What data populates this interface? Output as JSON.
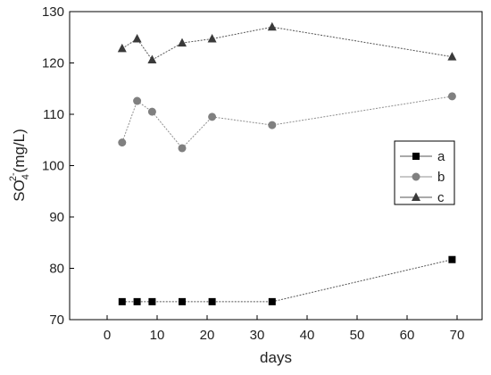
{
  "chart_data": {
    "type": "line",
    "xlabel": "days",
    "ylabel_main": "SO",
    "ylabel_sub": "4",
    "ylabel_sup": "2-",
    "ylabel_unit": "(mg/L)",
    "xlim": [
      -7.5,
      75
    ],
    "ylim": [
      70,
      130
    ],
    "xticks": [
      0,
      10,
      20,
      30,
      40,
      50,
      60,
      70
    ],
    "yticks": [
      70,
      80,
      90,
      100,
      110,
      120,
      130
    ],
    "grid": false,
    "legend_position": "center-right",
    "series": [
      {
        "name": "a",
        "marker": "square",
        "color": "#000000",
        "line_color": "#555555",
        "x": [
          3,
          6,
          9,
          15,
          21,
          33,
          69
        ],
        "y": [
          73.5,
          73.5,
          73.5,
          73.5,
          73.5,
          73.5,
          81.7
        ]
      },
      {
        "name": "b",
        "marker": "circle",
        "color": "#808080",
        "line_color": "#909090",
        "x": [
          3,
          6,
          9,
          15,
          21,
          33,
          69
        ],
        "y": [
          104.5,
          112.6,
          110.5,
          103.4,
          109.5,
          107.9,
          113.5
        ]
      },
      {
        "name": "c",
        "marker": "triangle",
        "color": "#3a3a3a",
        "line_color": "#555555",
        "x": [
          3,
          6,
          9,
          15,
          21,
          33,
          69
        ],
        "y": [
          122.8,
          124.7,
          120.6,
          123.9,
          124.7,
          127.0,
          121.2
        ]
      }
    ]
  }
}
